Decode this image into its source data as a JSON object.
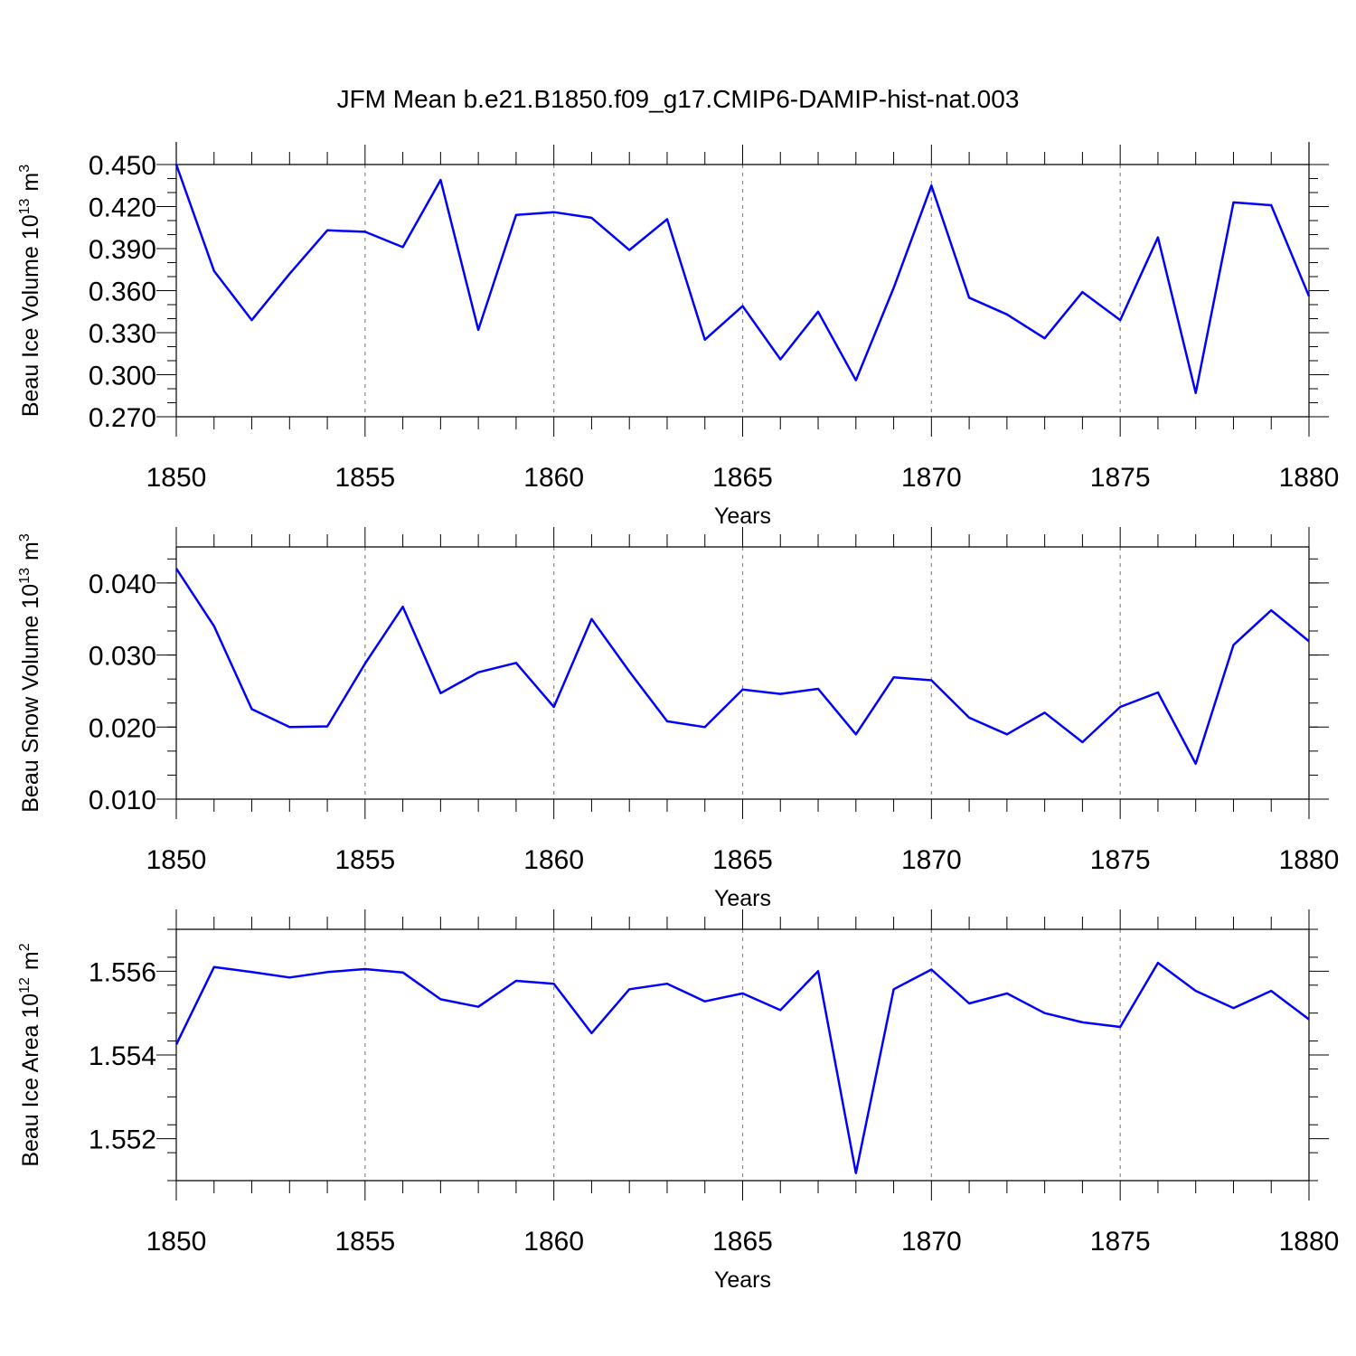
{
  "chart_data": {
    "type": "line",
    "title": "JFM Mean b.e21.B1850.f09_g17.CMIP6-DAMIP-hist-nat.003",
    "x": [
      1850,
      1851,
      1852,
      1853,
      1854,
      1855,
      1856,
      1857,
      1858,
      1859,
      1860,
      1861,
      1862,
      1863,
      1864,
      1865,
      1866,
      1867,
      1868,
      1869,
      1870,
      1871,
      1872,
      1873,
      1874,
      1875,
      1876,
      1877,
      1878,
      1879,
      1880
    ],
    "xlim": [
      1850,
      1880
    ],
    "xticks": [
      "1850",
      "1855",
      "1860",
      "1865",
      "1870",
      "1875",
      "1880"
    ],
    "panels": [
      {
        "ylabel": "Beau Ice Volume 10",
        "ylabel_exp": "13",
        "ylabel_unit": "m",
        "ylabel_unit_exp": "3",
        "xlabel": "Years",
        "ylim": [
          0.27,
          0.45
        ],
        "yticks": [
          "0.270",
          "0.300",
          "0.330",
          "0.360",
          "0.390",
          "0.420",
          "0.450"
        ],
        "series": [
          {
            "name": "Beau Ice Volume",
            "color": "#0000ff",
            "values": [
              0.45,
              0.374,
              0.339,
              0.372,
              0.403,
              0.402,
              0.391,
              0.439,
              0.332,
              0.414,
              0.416,
              0.412,
              0.389,
              0.411,
              0.325,
              0.349,
              0.311,
              0.345,
              0.296,
              0.362,
              0.435,
              0.355,
              0.343,
              0.326,
              0.359,
              0.339,
              0.398,
              0.287,
              0.423,
              0.421,
              0.356
            ]
          }
        ]
      },
      {
        "ylabel": "Beau Snow Volume 10",
        "ylabel_exp": "13",
        "ylabel_unit": "m",
        "ylabel_unit_exp": "3",
        "xlabel": "Years",
        "ylim": [
          0.01,
          0.045
        ],
        "yticks": [
          "0.010",
          "0.020",
          "0.030",
          "0.040"
        ],
        "series": [
          {
            "name": "Beau Snow Volume",
            "color": "#0000ff",
            "values": [
              0.042,
              0.034,
              0.0225,
              0.02,
              0.0201,
              0.0288,
              0.0367,
              0.0247,
              0.0276,
              0.0289,
              0.0228,
              0.035,
              0.0277,
              0.0208,
              0.02,
              0.0252,
              0.0246,
              0.0253,
              0.019,
              0.0269,
              0.0265,
              0.0213,
              0.019,
              0.022,
              0.0179,
              0.0228,
              0.0248,
              0.0149,
              0.0314,
              0.0362,
              0.0319
            ]
          }
        ]
      },
      {
        "ylabel": "Beau Ice Area 10",
        "ylabel_exp": "12",
        "ylabel_unit": "m",
        "ylabel_unit_exp": "2",
        "xlabel": "Years",
        "ylim": [
          1.551,
          1.557
        ],
        "yticks": [
          "1.552",
          "1.554",
          "1.556"
        ],
        "series": [
          {
            "name": "Beau Ice Area",
            "color": "#0000ff",
            "values": [
              1.55425,
              1.5561,
              1.55598,
              1.55585,
              1.55598,
              1.55605,
              1.55597,
              1.55533,
              1.55515,
              1.55577,
              1.5557,
              1.55452,
              1.55557,
              1.5557,
              1.55528,
              1.55547,
              1.55507,
              1.556,
              1.55118,
              1.55557,
              1.55604,
              1.55523,
              1.55547,
              1.555,
              1.55478,
              1.55467,
              1.5562,
              1.55553,
              1.55512,
              1.55553,
              1.55485
            ]
          }
        ]
      }
    ]
  }
}
